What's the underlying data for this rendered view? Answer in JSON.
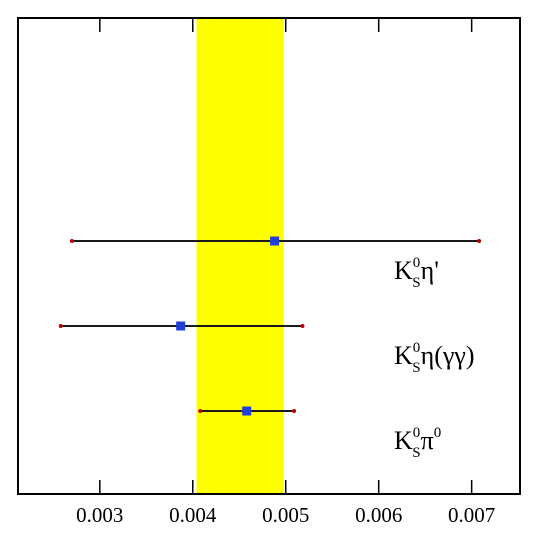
{
  "chart_data": {
    "type": "errorbar",
    "categories": [
      {
        "main": "K",
        "sub": "S",
        "sup": "0",
        "rest": "η'"
      },
      {
        "main": "K",
        "sub": "S",
        "sup": "0",
        "rest": "η(γγ)"
      },
      {
        "main": "K",
        "sub": "S",
        "sup": "0",
        "rest": "π"
      }
    ],
    "pi_sup": "0",
    "values": [
      0.00488,
      0.00387,
      0.00458
    ],
    "low": [
      0.0027,
      0.00258,
      0.00408
    ],
    "high": [
      0.00708,
      0.00518,
      0.00509
    ],
    "marker_color": "#1f3fd8",
    "band": [
      0.00404,
      0.00498
    ],
    "band_color": "#ffff00",
    "xlim": [
      0.00212,
      0.00752
    ],
    "xticks": [
      0.003,
      0.004,
      0.005,
      0.006,
      0.007
    ]
  }
}
